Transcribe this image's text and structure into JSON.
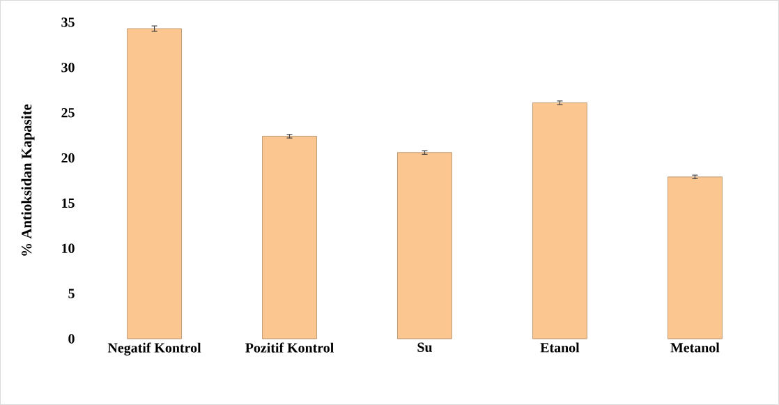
{
  "chart_data": {
    "type": "bar",
    "ylabel": "% Antioksidan Kapasite",
    "categories": [
      "Negatif Kontrol",
      "Pozitif Kontrol",
      "Su",
      "Etanol",
      "Metanol"
    ],
    "values": [
      34.3,
      22.4,
      20.6,
      26.1,
      17.9
    ],
    "errors": [
      0.3,
      0.2,
      0.2,
      0.2,
      0.2
    ],
    "color": "#fcc691",
    "ylim": [
      0,
      35
    ],
    "yticks": [
      0,
      5,
      10,
      15,
      20,
      25,
      30,
      35
    ],
    "grid": false
  }
}
